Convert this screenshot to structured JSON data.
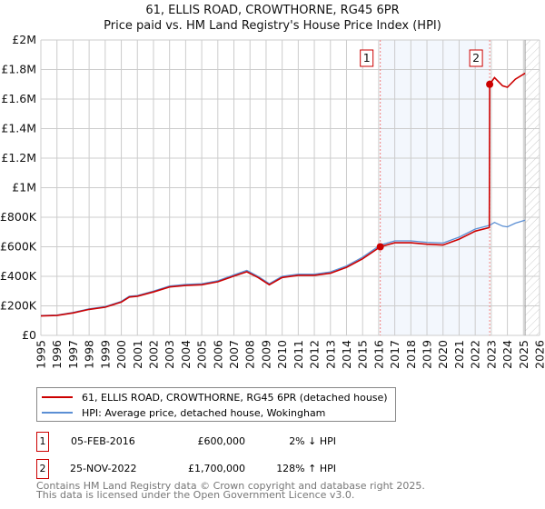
{
  "title": "61, ELLIS ROAD, CROWTHORNE, RG45 6PR",
  "subtitle": "Price paid vs. HM Land Registry's House Price Index (HPI)",
  "chart_data": {
    "type": "line",
    "xlim": [
      1995,
      2026
    ],
    "ylim": [
      0,
      2000000
    ],
    "x_ticks": [
      "1995",
      "1996",
      "1997",
      "1998",
      "1999",
      "2000",
      "2001",
      "2002",
      "2003",
      "2004",
      "2005",
      "2006",
      "2007",
      "2008",
      "2009",
      "2010",
      "2011",
      "2012",
      "2013",
      "2014",
      "2015",
      "2016",
      "2017",
      "2018",
      "2019",
      "2020",
      "2021",
      "2022",
      "2023",
      "2024",
      "2025",
      "2026"
    ],
    "y_ticks": [
      {
        "v": 0,
        "l": "£0"
      },
      {
        "v": 200000,
        "l": "£200K"
      },
      {
        "v": 400000,
        "l": "£400K"
      },
      {
        "v": 600000,
        "l": "£600K"
      },
      {
        "v": 800000,
        "l": "£800K"
      },
      {
        "v": 1000000,
        "l": "£1M"
      },
      {
        "v": 1200000,
        "l": "£1.2M"
      },
      {
        "v": 1400000,
        "l": "£1.4M"
      },
      {
        "v": 1600000,
        "l": "£1.6M"
      },
      {
        "v": 1800000,
        "l": "£1.8M"
      },
      {
        "v": 2000000,
        "l": "£2M"
      }
    ],
    "series": [
      {
        "name": "HPI: Average price, detached house, Wokingham",
        "color": "#5b8fd4",
        "x": [
          1995,
          1996,
          1997,
          1998,
          1999,
          2000,
          2000.5,
          2001,
          2002,
          2003,
          2004,
          2005,
          2006,
          2007,
          2007.8,
          2008.5,
          2009.2,
          2010,
          2011,
          2012,
          2013,
          2014,
          2015,
          2016.1,
          2017,
          2018,
          2019,
          2020,
          2021,
          2022,
          2022.9,
          2023.2,
          2023.7,
          2024,
          2024.5,
          2025.1
        ],
        "y": [
          135000,
          138000,
          155000,
          180000,
          195000,
          230000,
          265000,
          270000,
          300000,
          335000,
          345000,
          350000,
          370000,
          410000,
          440000,
          400000,
          350000,
          400000,
          415000,
          415000,
          430000,
          470000,
          530000,
          612000,
          640000,
          640000,
          630000,
          625000,
          665000,
          720000,
          745000,
          765000,
          740000,
          735000,
          760000,
          780000
        ]
      },
      {
        "name": "61, ELLIS ROAD, CROWTHORNE, RG45 6PR (detached house)",
        "color": "#cc0000",
        "x": [
          1995,
          1996,
          1997,
          1998,
          1999,
          2000,
          2000.5,
          2001,
          2002,
          2003,
          2004,
          2005,
          2006,
          2007,
          2007.8,
          2008.5,
          2009.2,
          2010,
          2011,
          2012,
          2013,
          2014,
          2015,
          2016.1,
          2017,
          2018,
          2019,
          2020,
          2021,
          2022,
          2022.88,
          2022.9,
          2023.2,
          2023.7,
          2024,
          2024.5,
          2025.1
        ],
        "y": [
          132000,
          135000,
          152000,
          176000,
          191000,
          225000,
          260000,
          265000,
          294000,
          328000,
          338000,
          343000,
          363000,
          402000,
          431000,
          392000,
          343000,
          392000,
          407000,
          407000,
          421000,
          461000,
          519000,
          600000,
          627000,
          627000,
          617000,
          612000,
          652000,
          706000,
          730000,
          1700000,
          1745000,
          1690000,
          1680000,
          1735000,
          1775000
        ]
      }
    ],
    "sales": [
      {
        "n": "1",
        "x": 2016.1,
        "y": 600000
      },
      {
        "n": "2",
        "x": 2022.9,
        "y": 1700000
      }
    ],
    "hatch_from": 2025.1
  },
  "legend": {
    "property": "61, ELLIS ROAD, CROWTHORNE, RG45 6PR (detached house)",
    "hpi": "HPI: Average price, detached house, Wokingham"
  },
  "table": [
    {
      "n": "1",
      "date": "05-FEB-2016",
      "price": "£600,000",
      "hpi": "2% ↓ HPI"
    },
    {
      "n": "2",
      "date": "25-NOV-2022",
      "price": "£1,700,000",
      "hpi": "128% ↑ HPI"
    }
  ],
  "footer": [
    "Contains HM Land Registry data © Crown copyright and database right 2025.",
    "This data is licensed under the Open Government Licence v3.0."
  ]
}
